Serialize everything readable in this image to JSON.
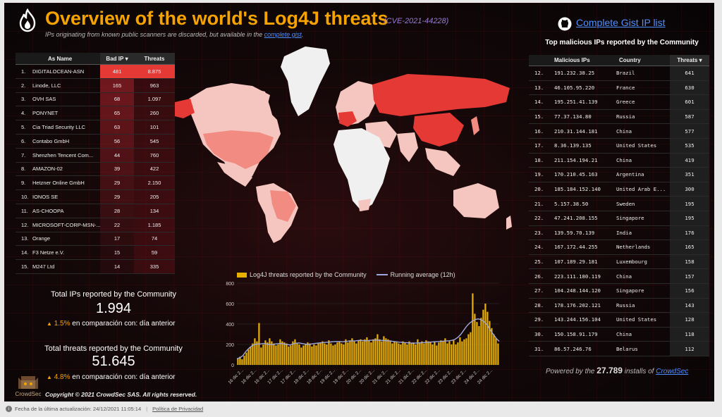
{
  "header": {
    "title": "Overview of the world's Log4J threats",
    "cve": "(CVE-2021-44228)",
    "subtitle_prefix": "IPs originating from known public scanners are discarded, but available in the ",
    "subtitle_link": "complete gist",
    "subtitle_suffix": ".",
    "gist_link": "Complete Gist IP list",
    "top_ips_title": "Top malicious IPs reported by the Community"
  },
  "as_table": {
    "headers": {
      "name": "As Name",
      "bad_ip": "Bad IP",
      "threats": "Threats"
    },
    "sort_indicator": "▾",
    "rows": [
      {
        "idx": "1.",
        "name": "DIGITALOCEAN-ASN",
        "bad_ip": "481",
        "threats": "8.875"
      },
      {
        "idx": "2.",
        "name": "Linode, LLC",
        "bad_ip": "165",
        "threats": "963"
      },
      {
        "idx": "3.",
        "name": "OVH SAS",
        "bad_ip": "68",
        "threats": "1.097"
      },
      {
        "idx": "4.",
        "name": "PONYNET",
        "bad_ip": "65",
        "threats": "260"
      },
      {
        "idx": "5.",
        "name": "Cia Triad Security LLC",
        "bad_ip": "63",
        "threats": "101"
      },
      {
        "idx": "6.",
        "name": "Contabo GmbH",
        "bad_ip": "56",
        "threats": "545"
      },
      {
        "idx": "7.",
        "name": "Shenzhen Tencent Com...",
        "bad_ip": "44",
        "threats": "760"
      },
      {
        "idx": "8.",
        "name": "AMAZON-02",
        "bad_ip": "39",
        "threats": "422"
      },
      {
        "idx": "9.",
        "name": "Hetzner Online GmbH",
        "bad_ip": "29",
        "threats": "2.150"
      },
      {
        "idx": "10.",
        "name": "IONOS SE",
        "bad_ip": "29",
        "threats": "205"
      },
      {
        "idx": "11.",
        "name": "AS-CHOOPA",
        "bad_ip": "28",
        "threats": "134"
      },
      {
        "idx": "12.",
        "name": "MICROSOFT-CORP-MSN-...",
        "bad_ip": "22",
        "threats": "1.185"
      },
      {
        "idx": "13.",
        "name": "Orange",
        "bad_ip": "17",
        "threats": "74"
      },
      {
        "idx": "14.",
        "name": "F3 Netze e.V.",
        "bad_ip": "15",
        "threats": "59"
      },
      {
        "idx": "15.",
        "name": "M247 Ltd",
        "bad_ip": "14",
        "threats": "335"
      }
    ]
  },
  "stats": {
    "ips_label": "Total IPs reported by the Community",
    "ips_value": "1.994",
    "ips_change_pct": "1.5%",
    "ips_change_text": " en comparación con: día anterior",
    "threats_label": "Total threats reported by the Community",
    "threats_value": "51.645",
    "threats_change_pct": "4.8%",
    "threats_change_text": " en comparación con: día anterior"
  },
  "ip_table": {
    "headers": {
      "ip": "Malicious IPs",
      "country": "Country",
      "threats": "Threats"
    },
    "sort_indicator": "▾",
    "rows": [
      {
        "idx": "12.",
        "ip": "191.232.38.25",
        "country": "Brazil",
        "threats": "641"
      },
      {
        "idx": "13.",
        "ip": "46.105.95.220",
        "country": "France",
        "threats": "630"
      },
      {
        "idx": "14.",
        "ip": "195.251.41.139",
        "country": "Greece",
        "threats": "601"
      },
      {
        "idx": "15.",
        "ip": "77.37.134.80",
        "country": "Russia",
        "threats": "587"
      },
      {
        "idx": "16.",
        "ip": "210.31.144.181",
        "country": "China",
        "threats": "577"
      },
      {
        "idx": "17.",
        "ip": "8.36.139.135",
        "country": "United States",
        "threats": "535"
      },
      {
        "idx": "18.",
        "ip": "211.154.194.21",
        "country": "China",
        "threats": "419"
      },
      {
        "idx": "19.",
        "ip": "170.210.45.163",
        "country": "Argentina",
        "threats": "351"
      },
      {
        "idx": "20.",
        "ip": "185.184.152.140",
        "country": "United Arab E...",
        "threats": "300"
      },
      {
        "idx": "21.",
        "ip": "5.157.38.50",
        "country": "Sweden",
        "threats": "195"
      },
      {
        "idx": "22.",
        "ip": "47.241.208.155",
        "country": "Singapore",
        "threats": "195"
      },
      {
        "idx": "23.",
        "ip": "139.59.70.139",
        "country": "India",
        "threats": "176"
      },
      {
        "idx": "24.",
        "ip": "167.172.44.255",
        "country": "Netherlands",
        "threats": "165"
      },
      {
        "idx": "25.",
        "ip": "107.189.29.181",
        "country": "Luxembourg",
        "threats": "158"
      },
      {
        "idx": "26.",
        "ip": "223.111.180.119",
        "country": "China",
        "threats": "157"
      },
      {
        "idx": "27.",
        "ip": "104.248.144.120",
        "country": "Singapore",
        "threats": "156"
      },
      {
        "idx": "28.",
        "ip": "178.176.202.121",
        "country": "Russia",
        "threats": "143"
      },
      {
        "idx": "29.",
        "ip": "143.244.156.104",
        "country": "United States",
        "threats": "128"
      },
      {
        "idx": "30.",
        "ip": "150.158.91.179",
        "country": "China",
        "threats": "118"
      },
      {
        "idx": "31.",
        "ip": "86.57.246.76",
        "country": "Belarus",
        "threats": "112"
      }
    ]
  },
  "footer": {
    "copyright": "Copyright © 2021 CrowdSec SAS. All rights reserved.",
    "logo_text": "CrowdSec",
    "powered_prefix": "Powered by the ",
    "powered_count": "27.789",
    "powered_mid": " installs of ",
    "powered_link": "CrowdSec",
    "updated": "Fecha de la última actualización: 24/12/2021 11:05:14",
    "separator": "|",
    "privacy": "Política de Privacidad"
  },
  "colors": {
    "title": "#f5a300",
    "bar": "#e8b000",
    "line": "#9fa8da",
    "heat_high": "#e53935",
    "heat_mid": "#f28b82",
    "heat_low": "#f5c6c0"
  },
  "chart_data": {
    "type": "bar",
    "title": "",
    "series": [
      {
        "name": "Log4J threats reported by the Community",
        "kind": "bar"
      },
      {
        "name": "Running average (12h)",
        "kind": "line"
      }
    ],
    "tick_labels": [
      "16 dic 2...",
      "16 dic 2...",
      "16 dic 2...",
      "17 dic 2...",
      "17 dic 2...",
      "18 dic 2...",
      "18 dic 2...",
      "19 dic 2...",
      "19 dic 2...",
      "20 dic 2...",
      "20 dic 2...",
      "21 dic 2...",
      "21 dic 2...",
      "21 dic 2...",
      "22 dic 2...",
      "22 dic 2...",
      "23 dic 2...",
      "23 dic 2...",
      "24 dic 2...",
      "24 dic 2..."
    ],
    "y_ticks": [
      "0",
      "200",
      "400",
      "600",
      "800"
    ],
    "ylim": [
      0,
      800
    ],
    "values": [
      60,
      80,
      55,
      90,
      120,
      150,
      180,
      210,
      260,
      230,
      410,
      170,
      200,
      240,
      220,
      260,
      230,
      210,
      190,
      200,
      250,
      230,
      220,
      210,
      180,
      190,
      230,
      250,
      210,
      200,
      170,
      190,
      200,
      220,
      210,
      180,
      200,
      190,
      210,
      220,
      230,
      210,
      200,
      240,
      210,
      190,
      200,
      220,
      230,
      210,
      200,
      250,
      220,
      240,
      260,
      230,
      210,
      240,
      250,
      230,
      250,
      270,
      240,
      220,
      250,
      260,
      300,
      250,
      230,
      280,
      260,
      250,
      240,
      210,
      230,
      220,
      210,
      200,
      230,
      220,
      200,
      230,
      210,
      220,
      200,
      250,
      220,
      230,
      210,
      240,
      230,
      220,
      200,
      230,
      190,
      220,
      240,
      230,
      260,
      210,
      230,
      200,
      240,
      200,
      220,
      270,
      230,
      250,
      260,
      300,
      320,
      700,
      500,
      420,
      380,
      460,
      540,
      600,
      520,
      430,
      360,
      300,
      260,
      210
    ],
    "average": [
      60,
      70,
      90,
      130,
      160,
      185,
      200,
      205,
      205,
      210,
      205,
      200,
      198,
      205,
      208,
      210,
      205,
      200,
      195,
      205,
      212,
      215,
      210,
      205,
      200,
      203,
      208,
      212,
      215,
      218,
      220,
      222,
      225,
      228,
      230,
      228,
      226,
      230,
      233,
      236,
      234,
      238,
      240,
      238,
      236,
      240,
      242,
      244,
      242,
      240,
      238,
      236,
      234,
      230,
      226,
      222,
      220,
      218,
      216,
      214,
      212,
      214,
      216,
      218,
      220,
      222,
      224,
      226,
      228,
      230,
      232,
      234,
      236,
      240,
      250,
      270,
      300,
      340,
      380,
      410,
      430,
      445,
      450,
      440,
      420,
      390,
      340,
      300,
      260,
      230
    ]
  }
}
